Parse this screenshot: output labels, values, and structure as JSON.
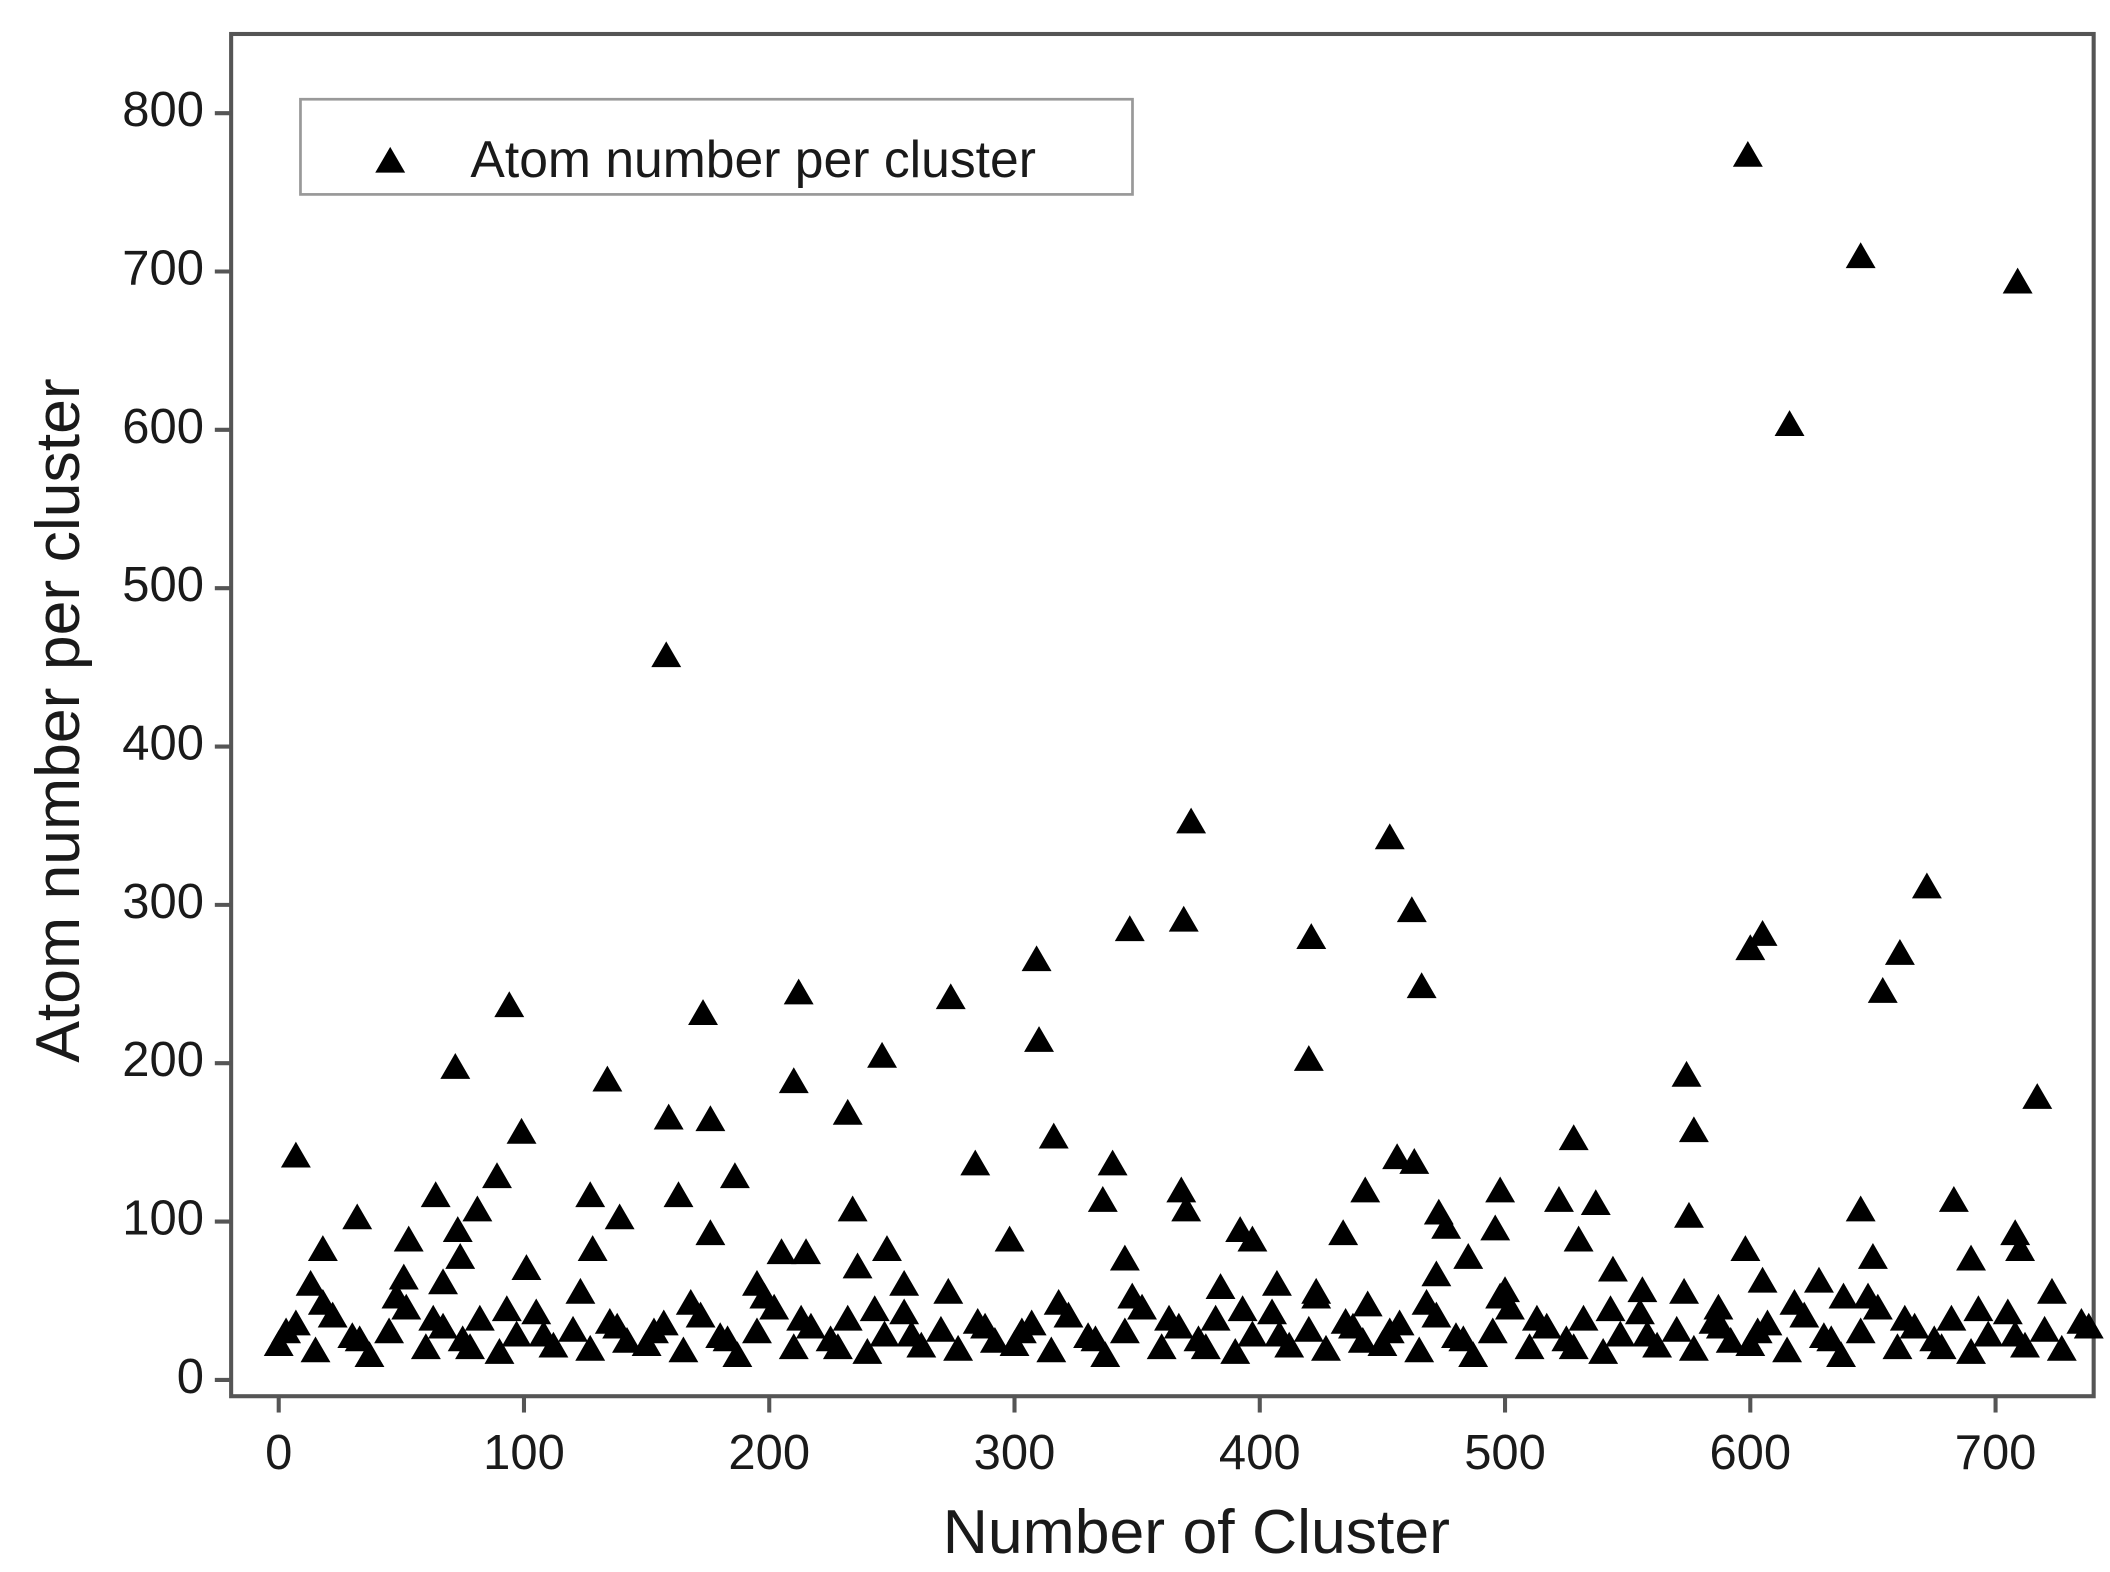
{
  "chart_data": {
    "type": "scatter",
    "xlabel": "Number of Cluster",
    "ylabel": "Atom number per cluster",
    "xlim": [
      -19.4,
      740
    ],
    "ylim": [
      -10.3,
      850
    ],
    "xticks": [
      0,
      100,
      200,
      300,
      400,
      500,
      600,
      700
    ],
    "yticks": [
      0,
      100,
      200,
      300,
      400,
      500,
      600,
      700,
      800
    ],
    "legend": "upper left",
    "grid": false,
    "x": [
      599,
      645,
      709,
      616,
      158,
      372,
      453,
      672,
      462,
      369,
      347,
      421,
      600,
      605,
      661,
      466,
      654,
      94,
      212,
      274,
      309,
      173,
      310,
      420,
      246,
      72,
      134,
      210,
      574,
      717,
      232,
      159,
      176,
      528,
      577,
      99,
      316,
      7,
      456,
      463,
      284,
      340,
      89,
      186,
      64,
      127,
      163,
      498,
      443,
      368,
      336,
      522,
      537,
      683,
      81,
      234,
      645,
      32,
      139,
      575,
      473,
      370,
      496,
      73,
      176,
      392,
      434,
      476,
      708,
      53,
      298,
      397,
      530,
      18,
      128,
      205,
      215,
      248,
      598,
      485,
      650,
      690,
      74,
      710,
      345,
      101,
      236,
      544,
      605,
      472,
      13,
      628,
      255,
      51,
      67,
      195,
      407,
      587,
      423,
      384,
      444,
      500,
      556,
      638,
      0,
      7,
      15,
      22,
      30,
      37,
      45,
      52,
      60,
      67,
      75,
      82,
      90,
      97,
      105,
      112,
      120,
      127,
      135,
      142,
      150,
      157,
      165,
      172,
      180,
      187,
      195,
      202,
      210,
      217,
      225,
      232,
      240,
      247,
      255,
      262,
      270,
      277,
      285,
      292,
      300,
      307,
      315,
      322,
      330,
      337,
      345,
      352,
      360,
      367,
      375,
      382,
      390,
      397,
      405,
      412,
      420,
      427,
      435,
      442,
      450,
      457,
      465,
      472,
      480,
      487,
      495,
      502,
      510,
      517,
      525,
      532,
      540,
      547,
      555,
      562,
      570,
      577,
      585,
      592,
      600,
      607,
      615,
      622,
      630,
      637,
      645,
      652,
      660,
      667,
      675,
      682,
      690,
      697,
      705,
      712,
      720,
      727,
      735,
      3,
      18,
      33,
      48,
      63,
      78,
      93,
      108,
      123,
      138,
      153,
      168,
      183,
      198,
      213,
      228,
      243,
      258,
      273,
      288,
      303,
      318,
      333,
      348,
      363,
      378,
      393,
      408,
      423,
      438,
      453,
      468,
      483,
      498,
      513,
      528,
      543,
      558,
      573,
      588,
      603,
      618,
      633,
      648,
      663,
      678,
      693,
      708,
      723,
      738
    ],
    "series": [
      {
        "name": "Atom number per cluster",
        "color": "#000000",
        "marker": "triangle",
        "values": [
          773,
          709,
          693,
          603,
          457,
          352,
          342,
          311,
          296,
          290,
          284,
          279,
          272,
          281,
          269,
          248,
          245,
          236,
          244,
          241,
          265,
          231,
          214,
          202,
          204,
          197,
          189,
          188,
          192,
          178,
          168,
          165,
          164,
          152,
          157,
          156,
          153,
          141,
          140,
          137,
          136,
          136,
          128,
          128,
          116,
          116,
          116,
          119,
          119,
          119,
          113,
          113,
          111,
          113,
          107,
          107,
          107,
          102,
          102,
          103,
          105,
          107,
          95,
          94,
          92,
          94,
          92,
          96,
          92,
          88,
          88,
          88,
          88,
          82,
          82,
          80,
          80,
          82,
          82,
          77,
          77,
          76,
          77,
          82,
          76,
          70,
          71,
          69,
          62,
          66,
          60,
          62,
          60,
          64,
          61,
          60,
          60,
          45,
          52,
          58,
          47,
          56,
          56,
          52,
          22,
          35,
          18,
          40,
          27,
          15,
          30,
          45,
          20,
          33,
          25,
          38,
          17,
          28,
          42,
          21,
          31,
          19,
          36,
          24,
          22,
          35,
          18,
          40,
          27,
          15,
          30,
          45,
          20,
          33,
          25,
          38,
          17,
          28,
          42,
          21,
          31,
          19,
          36,
          24,
          22,
          35,
          18,
          40,
          27,
          15,
          30,
          45,
          20,
          33,
          25,
          38,
          17,
          28,
          42,
          21,
          31,
          19,
          36,
          24,
          22,
          35,
          18,
          40,
          27,
          15,
          30,
          45,
          20,
          33,
          25,
          38,
          17,
          28,
          42,
          21,
          31,
          19,
          36,
          24,
          22,
          35,
          18,
          40,
          27,
          15,
          30,
          45,
          20,
          33,
          25,
          38,
          17,
          28,
          42,
          21,
          31,
          19,
          36,
          30,
          48,
          25,
          52,
          38,
          20,
          44,
          28,
          55,
          33,
          30,
          48,
          25,
          52,
          38,
          20,
          44,
          28,
          55,
          33,
          30,
          48,
          25,
          52,
          38,
          20,
          44,
          28,
          55,
          33,
          30,
          48,
          25,
          52,
          38,
          20,
          44,
          28,
          55,
          33,
          30,
          48,
          25,
          52,
          38,
          20,
          44,
          28,
          55,
          33
        ]
      }
    ]
  }
}
